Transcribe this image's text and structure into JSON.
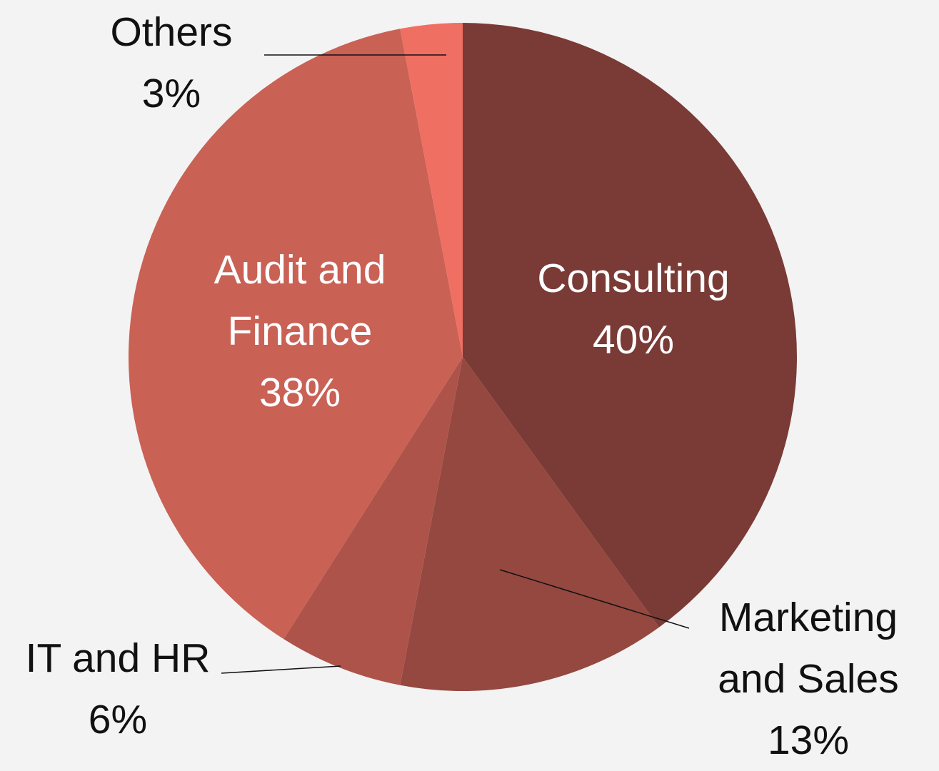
{
  "chart_data": {
    "type": "pie",
    "categories": [
      "Consulting",
      "Marketing and Sales",
      "IT and HR",
      "Audit and Finance",
      "Others"
    ],
    "values": [
      40,
      13,
      6,
      38,
      3
    ],
    "value_labels": [
      "40%",
      "13%",
      "6%",
      "38%",
      "3%"
    ],
    "colors": [
      "#7a3a35",
      "#944840",
      "#ad534a",
      "#c96155",
      "#ef6f62"
    ]
  }
}
